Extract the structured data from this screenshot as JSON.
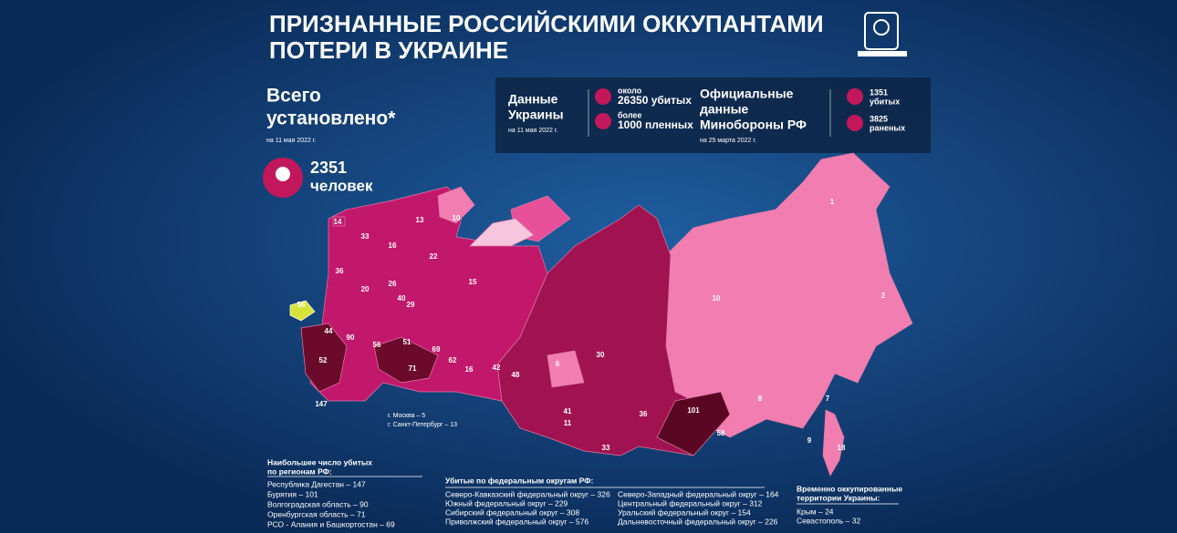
{
  "header": {
    "title": [
      "ПРИЗНАННЫЕ РОССИЙСКИМИ ОККУПАНТАМИ",
      "ПОТЕРИ В УКРАИНЕ"
    ]
  },
  "total": {
    "heading": [
      "Всего",
      "установлено*"
    ],
    "date": "на 11 мая 2022 г.",
    "count": "2351",
    "unit": "человек"
  },
  "ukraine": {
    "title": [
      "Данные",
      "Украины"
    ],
    "date": "на 11 мая 2022 г.",
    "items": [
      [
        "около",
        "26350 убитых"
      ],
      [
        "более",
        "1000 пленных"
      ]
    ]
  },
  "russia": {
    "title": [
      "Официальные",
      "данные",
      "Минобороны РФ"
    ],
    "date": "на 25 марта 2022 г.",
    "items": [
      [
        "1351",
        "убитых"
      ],
      [
        "3825",
        "раненых"
      ]
    ]
  },
  "cities": [
    "г. Москва – 5",
    "г. Санкт-Петербург – 13"
  ],
  "top_regions": {
    "title": [
      "Наибольшее число убитых",
      "по регионам РФ:"
    ],
    "items": [
      "Республика Дагестан – 147",
      "Бурятия – 101",
      "Волгоградская область – 90",
      "Оренбургская область – 71",
      "РСО - Алания и Башкортостан – 69"
    ]
  },
  "districts": {
    "title": "Убитые по федеральным округам РФ:",
    "left": [
      "Северо-Кавказский федеральный округ – 326",
      "Южный федеральный округ – 229",
      "Сибирский федеральный округ – 308",
      "Приволжский федеральный округ – 576"
    ],
    "right": [
      "Северо-Западный федеральный округ – 164",
      "Центральный федеральный округ – 312",
      "Уральский федеральный округ – 154",
      "Дальневосточный федеральный округ – 226"
    ]
  },
  "occupied": {
    "title": [
      "Временно оккупированные",
      "территории Украины:"
    ],
    "items": [
      "Крым – 24",
      "Севастополь – 32"
    ]
  },
  "map_labels": [
    "14",
    "13",
    "10",
    "33",
    "16",
    "22",
    "36",
    "20",
    "26",
    "40",
    "29",
    "15",
    "56",
    "44",
    "90",
    "56",
    "51",
    "69",
    "62",
    "52",
    "147",
    "71",
    "42",
    "16",
    "48",
    "30",
    "41",
    "11",
    "33",
    "36",
    "101",
    "58",
    "10",
    "1",
    "2",
    "8",
    "7",
    "9",
    "18",
    "6"
  ]
}
